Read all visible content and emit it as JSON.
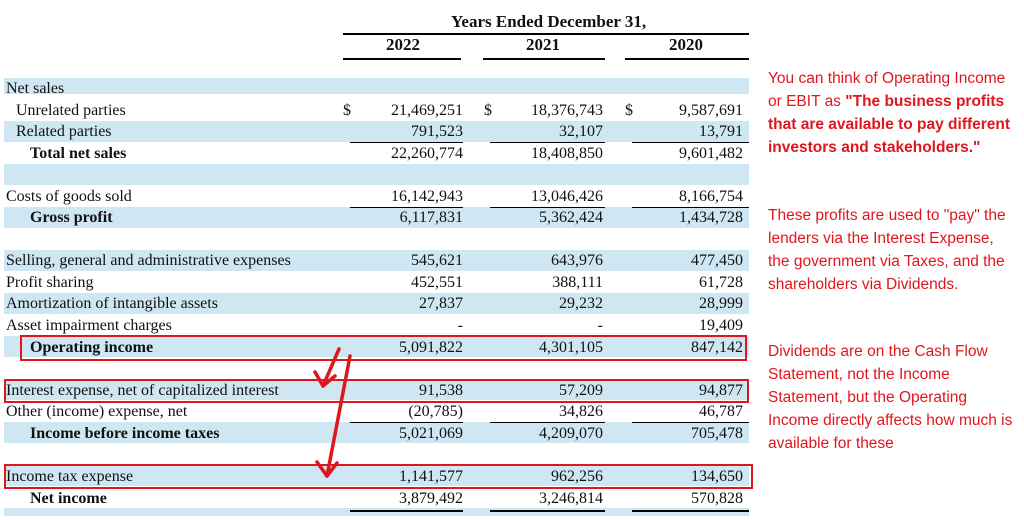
{
  "header": {
    "period": "Years Ended December 31,",
    "years": [
      "2022",
      "2021",
      "2020"
    ]
  },
  "rows": [
    {
      "label": "Net sales",
      "style": "plain",
      "values": [
        "",
        "",
        ""
      ]
    },
    {
      "label": "Unrelated parties",
      "style": "ind1",
      "dollar": true,
      "values": [
        "21,469,251",
        "18,376,743",
        "9,587,691"
      ]
    },
    {
      "label": "Related parties",
      "style": "ind1",
      "values": [
        "791,523",
        "32,107",
        "13,791"
      ]
    },
    {
      "label": "Total net sales",
      "style": "ind2",
      "values": [
        "22,260,774",
        "18,408,850",
        "9,601,482"
      ]
    },
    {
      "label": "Costs of goods sold",
      "style": "plain",
      "values": [
        "16,142,943",
        "13,046,426",
        "8,166,754"
      ]
    },
    {
      "label": "Gross profit",
      "style": "ind2",
      "values": [
        "6,117,831",
        "5,362,424",
        "1,434,728"
      ]
    },
    {
      "label": "Selling, general and administrative expenses",
      "style": "plain",
      "values": [
        "545,621",
        "643,976",
        "477,450"
      ]
    },
    {
      "label": "Profit sharing",
      "style": "plain",
      "values": [
        "452,551",
        "388,111",
        "61,728"
      ]
    },
    {
      "label": "Amortization of intangible assets",
      "style": "plain",
      "values": [
        "27,837",
        "29,232",
        "28,999"
      ]
    },
    {
      "label": "Asset impairment charges",
      "style": "plain",
      "values": [
        "-",
        "-",
        "19,409"
      ]
    },
    {
      "label": "Operating income",
      "style": "ind2",
      "values": [
        "5,091,822",
        "4,301,105",
        "847,142"
      ]
    },
    {
      "label": "Interest expense, net of capitalized interest",
      "style": "plain",
      "values": [
        "91,538",
        "57,209",
        "94,877"
      ]
    },
    {
      "label": "Other (income) expense, net",
      "style": "plain",
      "values": [
        "(20,785)",
        "34,826",
        "46,787"
      ]
    },
    {
      "label": "Income before income taxes",
      "style": "ind2",
      "values": [
        "5,021,069",
        "4,209,070",
        "705,478"
      ]
    },
    {
      "label": "Income tax expense",
      "style": "plain",
      "values": [
        "1,141,577",
        "962,256",
        "134,650"
      ]
    },
    {
      "label": "Net income",
      "style": "ind2",
      "values": [
        "3,879,492",
        "3,246,814",
        "570,828"
      ]
    }
  ],
  "dollar_sign": "$",
  "notes": {
    "p1_text": "You can think of Operating Income or EBIT as ",
    "p1_bold": "\"The business profits that are available to pay different investors and stakeholders.\"",
    "p2": "These profits are used to \"pay\" the lenders via the Interest Expense, the government via Taxes, and the shareholders via Dividends.",
    "p3": "Dividends are on the Cash Flow Statement, not the Income Statement, but the Operating Income directly affects how much is available for these"
  },
  "colors": {
    "band": "#cfe6f3",
    "highlight": "#e0161e",
    "note_text": "#e0161e"
  }
}
